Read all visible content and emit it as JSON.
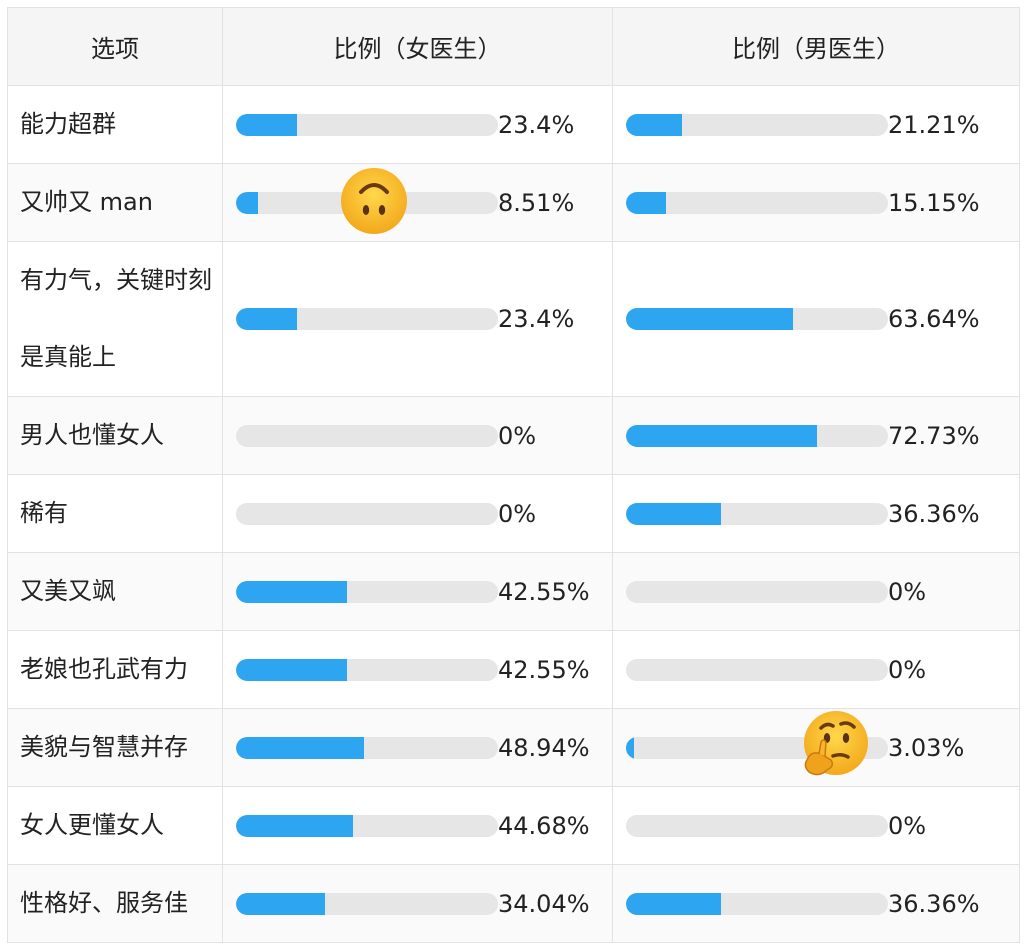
{
  "headers": {
    "option": "选项",
    "female": "比例（女医生）",
    "male": "比例（男医生）"
  },
  "rows": [
    {
      "option": "能力超群",
      "female": 23.4,
      "female_label": "23.4%",
      "male": 21.21,
      "male_label": "21.21%"
    },
    {
      "option": "又帅又 man",
      "female": 8.51,
      "female_label": "8.51%",
      "male": 15.15,
      "male_label": "15.15%"
    },
    {
      "option": "有力气，关键时刻是真能上",
      "female": 23.4,
      "female_label": "23.4%",
      "male": 63.64,
      "male_label": "63.64%",
      "tall": true
    },
    {
      "option": "男人也懂女人",
      "female": 0,
      "female_label": "0%",
      "male": 72.73,
      "male_label": "72.73%"
    },
    {
      "option": "稀有",
      "female": 0,
      "female_label": "0%",
      "male": 36.36,
      "male_label": "36.36%"
    },
    {
      "option": "又美又飒",
      "female": 42.55,
      "female_label": "42.55%",
      "male": 0,
      "male_label": "0%"
    },
    {
      "option": "老娘也孔武有力",
      "female": 42.55,
      "female_label": "42.55%",
      "male": 0,
      "male_label": "0%"
    },
    {
      "option": "美貌与智慧并存",
      "female": 48.94,
      "female_label": "48.94%",
      "male": 3.03,
      "male_label": "3.03%"
    },
    {
      "option": "女人更懂女人",
      "female": 44.68,
      "female_label": "44.68%",
      "male": 0,
      "male_label": "0%"
    },
    {
      "option": "性格好、服务佳",
      "female": 34.04,
      "female_label": "34.04%",
      "male": 36.36,
      "male_label": "36.36%"
    }
  ],
  "colors": {
    "fill": "#2ea5f0",
    "track": "#e6e6e6"
  },
  "stickers": [
    {
      "icon": "upside-down-face-icon",
      "row": 1,
      "column": "female"
    },
    {
      "icon": "thinking-face-icon",
      "row": 7,
      "column": "male"
    }
  ]
}
